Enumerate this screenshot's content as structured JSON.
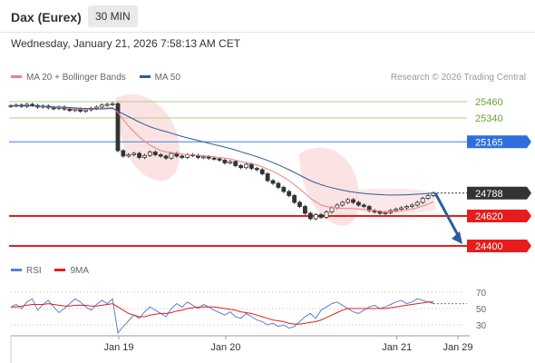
{
  "header": {
    "title": "Dax (Eurex)",
    "timeframe": "30 MIN",
    "datetime": "Wednesday, January 21, 2026 7:58:13 AM CET"
  },
  "legend": {
    "items": [
      {
        "label": "MA 20 + Bollinger Bands",
        "color": "#f08080"
      },
      {
        "label": "MA 50",
        "color": "#2e5c9a"
      }
    ],
    "credit": "Research © 2026 Trading Central"
  },
  "rsi_legend": {
    "items": [
      {
        "label": "RSI",
        "color": "#5b7fd6"
      },
      {
        "label": "9MA",
        "color": "#e02020"
      }
    ]
  },
  "chart_data": [
    {
      "type": "line",
      "subtype": "candlestick",
      "title": "",
      "ylim": [
        24340,
        25540
      ],
      "x_ticks": [
        "Jan 19",
        "Jan 20",
        "Jan 21",
        "Jan 29"
      ],
      "levels": [
        {
          "value": 25460,
          "label": "25460",
          "color": "#a8d08d",
          "label_color": "#6aa337",
          "style": "thin"
        },
        {
          "value": 25340,
          "label": "25340",
          "color": "#a8d08d",
          "label_color": "#6aa337",
          "style": "thin"
        },
        {
          "value": 25165,
          "label": "25165",
          "color": "#3d7de0",
          "label_color": "#ffffff",
          "box": "#2f6fdc",
          "style": "thin"
        },
        {
          "value": 24788,
          "label": "24788",
          "color": "#333333",
          "label_color": "#ffffff",
          "box": "#333333",
          "style": "dotted"
        },
        {
          "value": 24620,
          "label": "24620",
          "color": "#e81c1c",
          "label_color": "#ffffff",
          "box": "#e81c1c",
          "style": "thick"
        },
        {
          "value": 24400,
          "label": "24400",
          "color": "#e81c1c",
          "label_color": "#ffffff",
          "box": "#e81c1c",
          "style": "thick"
        }
      ],
      "close_series": [
        25430,
        25435,
        25425,
        25440,
        25432,
        25420,
        25428,
        25415,
        25410,
        25420,
        25405,
        25395,
        25405,
        25390,
        25400,
        25410,
        25420,
        25435,
        25440,
        25445,
        25100,
        25060,
        25070,
        25080,
        25050,
        25065,
        25090,
        25070,
        25060,
        25045,
        25080,
        25060,
        25050,
        25070,
        25065,
        25050,
        25055,
        25045,
        25040,
        25030,
        25010,
        25020,
        24990,
        24975,
        25000,
        24970,
        24960,
        24930,
        24880,
        24860,
        24830,
        24800,
        24770,
        24720,
        24690,
        24640,
        24600,
        24630,
        24610,
        24650,
        24680,
        24700,
        24720,
        24740,
        24720,
        24700,
        24690,
        24660,
        24650,
        24640,
        24645,
        24660,
        24670,
        24680,
        24690,
        24700,
        24720,
        24750,
        24770,
        24788
      ],
      "ma20": [
        25430,
        25432,
        25430,
        25428,
        25428,
        25426,
        25424,
        25420,
        25418,
        25418,
        25414,
        25410,
        25408,
        25405,
        25403,
        25404,
        25406,
        25410,
        25414,
        25418,
        25380,
        25330,
        25280,
        25240,
        25200,
        25170,
        25140,
        25120,
        25100,
        25090,
        25085,
        25080,
        25075,
        25070,
        25068,
        25065,
        25062,
        25058,
        25055,
        25050,
        25045,
        25040,
        25030,
        25020,
        25012,
        25004,
        24996,
        24982,
        24965,
        24948,
        24928,
        24905,
        24880,
        24850,
        24818,
        24785,
        24750,
        24725,
        24700,
        24690,
        24682,
        24678,
        24676,
        24676,
        24674,
        24672,
        24668,
        24664,
        24660,
        24655,
        24652,
        24652,
        24654,
        24658,
        24664,
        24670,
        24680,
        24694,
        24708,
        24724
      ],
      "ma50": [
        25430,
        25430,
        25430,
        25430,
        25430,
        25428,
        25426,
        25424,
        25422,
        25420,
        25418,
        25416,
        25414,
        25412,
        25410,
        25408,
        25406,
        25406,
        25408,
        25410,
        25390,
        25370,
        25350,
        25330,
        25310,
        25292,
        25276,
        25262,
        25250,
        25240,
        25228,
        25216,
        25204,
        25194,
        25184,
        25174,
        25164,
        25154,
        25145,
        25136,
        25126,
        25116,
        25104,
        25092,
        25080,
        25068,
        25056,
        25042,
        25028,
        25012,
        24996,
        24978,
        24960,
        24940,
        24920,
        24900,
        24880,
        24864,
        24850,
        24838,
        24828,
        24818,
        24810,
        24802,
        24796,
        24790,
        24786,
        24782,
        24779,
        24777,
        24775,
        24774,
        24774,
        24775,
        24776,
        24778,
        24780,
        24783,
        24786,
        24790
      ],
      "projection": {
        "from": 24788,
        "to": 24400
      }
    },
    {
      "type": "line",
      "title": "",
      "ylim": [
        20,
        80
      ],
      "y_ticks": [
        70,
        50,
        30
      ],
      "series": [
        {
          "name": "RSI",
          "values": [
            52,
            55,
            50,
            58,
            62,
            48,
            55,
            60,
            52,
            45,
            50,
            56,
            62,
            58,
            52,
            48,
            55,
            60,
            56,
            62,
            20,
            28,
            35,
            42,
            38,
            46,
            52,
            48,
            44,
            40,
            50,
            56,
            52,
            58,
            54,
            50,
            55,
            52,
            48,
            45,
            42,
            46,
            40,
            38,
            44,
            40,
            36,
            34,
            30,
            32,
            28,
            30,
            26,
            28,
            34,
            40,
            44,
            38,
            48,
            52,
            56,
            58,
            54,
            50,
            46,
            44,
            48,
            52,
            54,
            50,
            52,
            55,
            58,
            60,
            56,
            58,
            62,
            60,
            58,
            56
          ]
        },
        {
          "name": "9MA",
          "values": [
            52,
            52,
            53,
            54,
            55,
            55,
            55,
            56,
            55,
            54,
            53,
            53,
            54,
            54,
            54,
            53,
            53,
            54,
            55,
            56,
            52,
            48,
            44,
            42,
            40,
            40,
            42,
            43,
            44,
            44,
            45,
            47,
            48,
            50,
            51,
            52,
            52,
            52,
            52,
            51,
            50,
            49,
            48,
            46,
            45,
            44,
            42,
            40,
            38,
            36,
            35,
            34,
            32,
            31,
            31,
            32,
            33,
            34,
            36,
            39,
            42,
            45,
            48,
            50,
            50,
            50,
            50,
            50,
            50,
            50,
            50,
            51,
            52,
            53,
            54,
            55,
            56,
            57,
            58,
            58
          ]
        }
      ],
      "x_ticks": [
        "Jan 19",
        "Jan 20",
        "Jan 21",
        "Jan 29"
      ]
    }
  ]
}
